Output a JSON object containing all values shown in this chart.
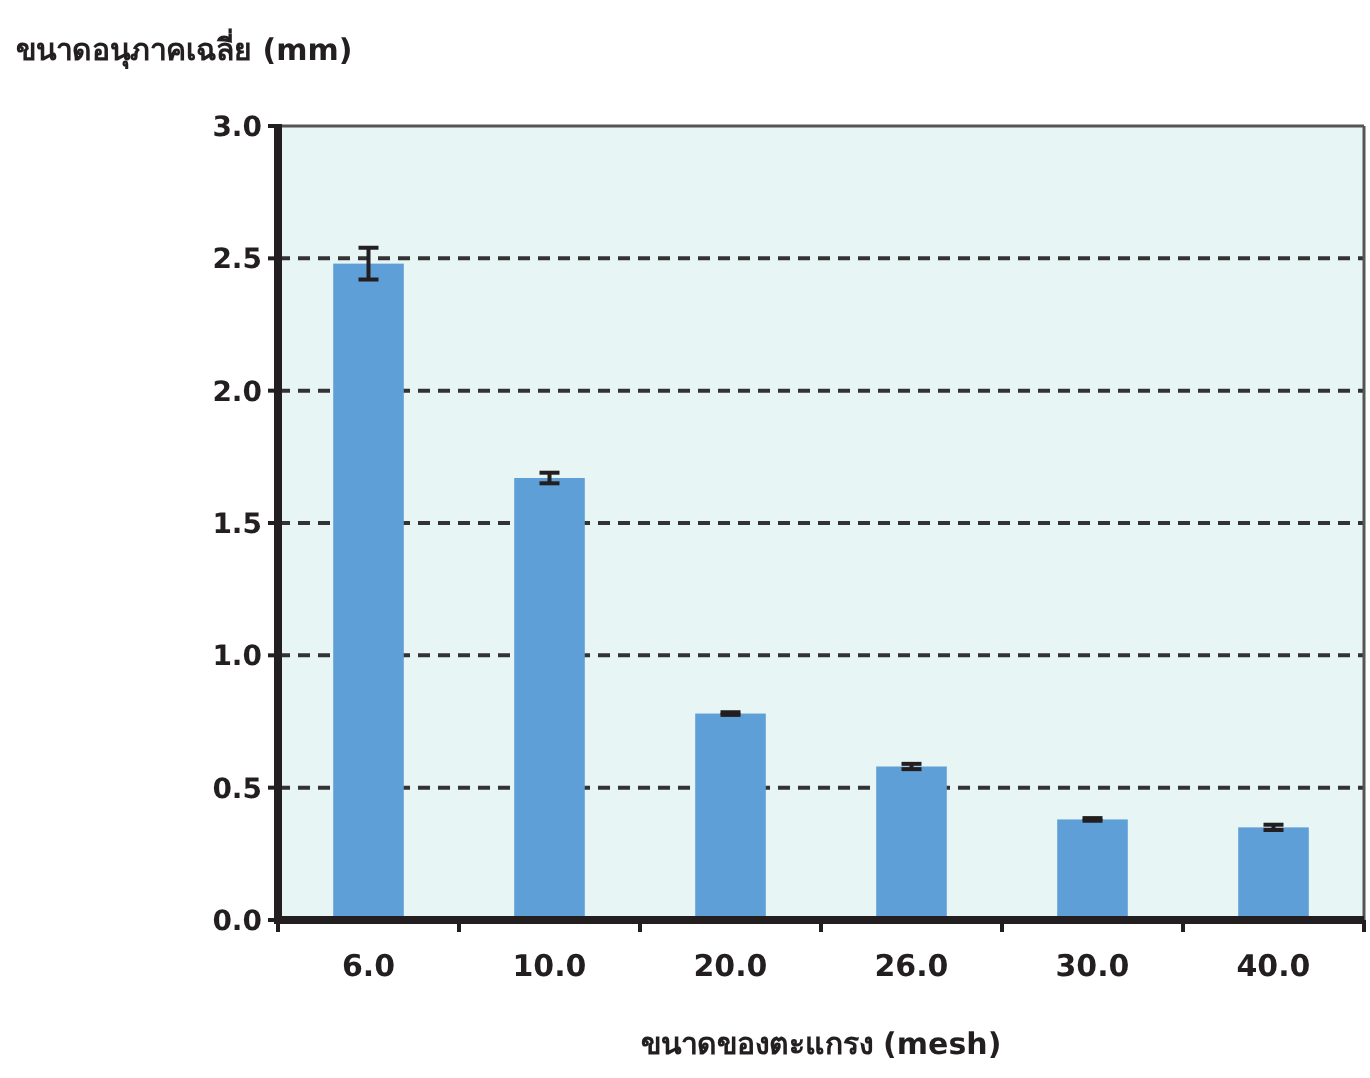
{
  "chart_data": {
    "type": "bar",
    "ylabel": "ขนาดอนุภาคเฉลี่ย (mm)",
    "xlabel": "ขนาดของตะแกรง (mesh)",
    "categories": [
      "6.0",
      "10.0",
      "20.0",
      "26.0",
      "30.0",
      "40.0"
    ],
    "values": [
      2.48,
      1.67,
      0.78,
      0.58,
      0.38,
      0.35
    ],
    "errors": [
      0.06,
      0.02,
      0.005,
      0.01,
      0.005,
      0.01
    ],
    "color": "#5f9fd8",
    "ylim": [
      0,
      3
    ],
    "yticks": [
      {
        "value": 0,
        "label": "0.0"
      },
      {
        "value": 0.5,
        "label": "0.5"
      },
      {
        "value": 1,
        "label": "1.0"
      },
      {
        "value": 1.5,
        "label": "1.5"
      },
      {
        "value": 2,
        "label": "2.0"
      },
      {
        "value": 2.5,
        "label": "2.5"
      },
      {
        "value": 3,
        "label": "3.0"
      }
    ],
    "grid": "y",
    "line_style": "dashed"
  }
}
